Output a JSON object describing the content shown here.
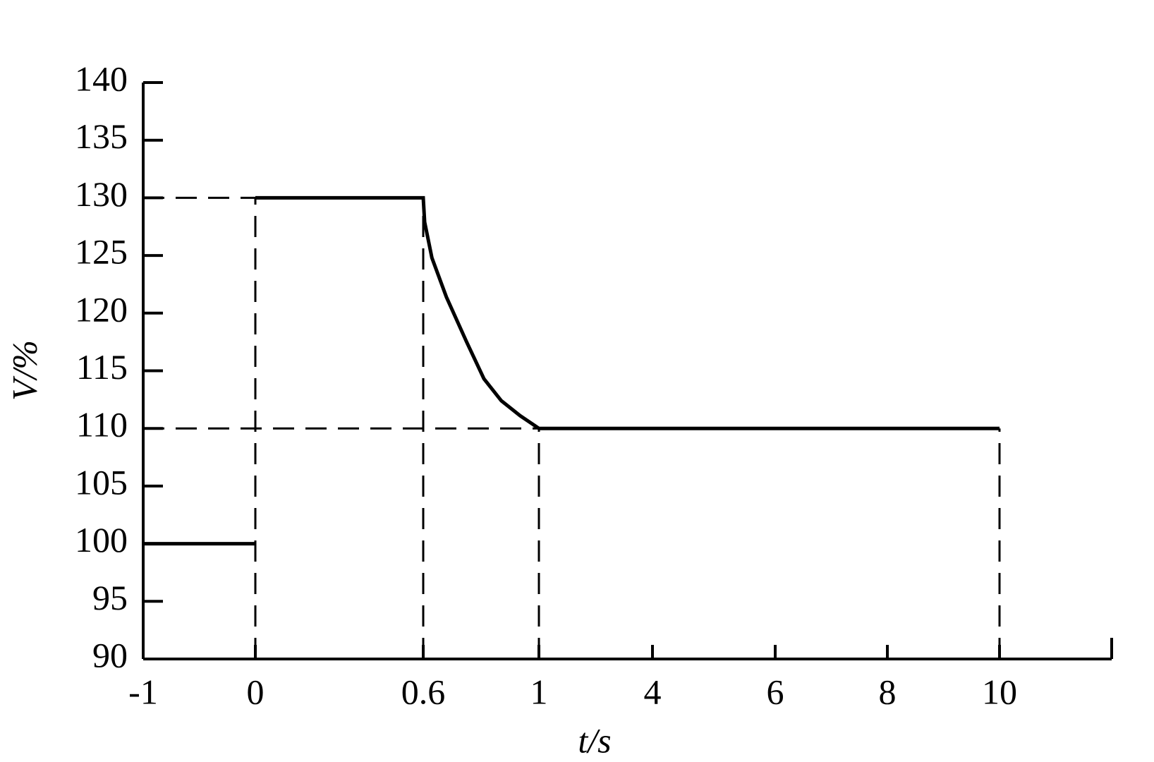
{
  "chart_data": {
    "type": "line",
    "xlabel": "t/s",
    "ylabel": "V/%",
    "x": [
      -1,
      0,
      0,
      0,
      0.6,
      0.6,
      0.605,
      0.63,
      0.68,
      0.75,
      0.81,
      0.87,
      0.935,
      1,
      10
    ],
    "series": [
      {
        "color": "#000000",
        "values": [
          100,
          100,
          null,
          130,
          130,
          130,
          127.9,
          124.8,
          121.4,
          117.5,
          114.3,
          112.4,
          111.1,
          110,
          110
        ]
      }
    ],
    "xlim": [
      -1,
      12
    ],
    "xticks": [
      -1,
      0,
      0.6,
      1,
      4,
      6,
      8,
      10
    ],
    "ylim": [
      90,
      140
    ],
    "yticks": [
      90,
      95,
      100,
      105,
      110,
      115,
      120,
      125,
      130,
      135,
      140
    ],
    "hlines": [
      {
        "y": 130,
        "x_end": 0
      },
      {
        "y": 110,
        "x_end": 1
      }
    ],
    "vlines": [
      {
        "x": 0,
        "y_end": 130
      },
      {
        "x": 0.6,
        "y_end": 130
      },
      {
        "x": 1,
        "y_end": 110
      },
      {
        "x": 10,
        "y_end": 110
      }
    ]
  }
}
